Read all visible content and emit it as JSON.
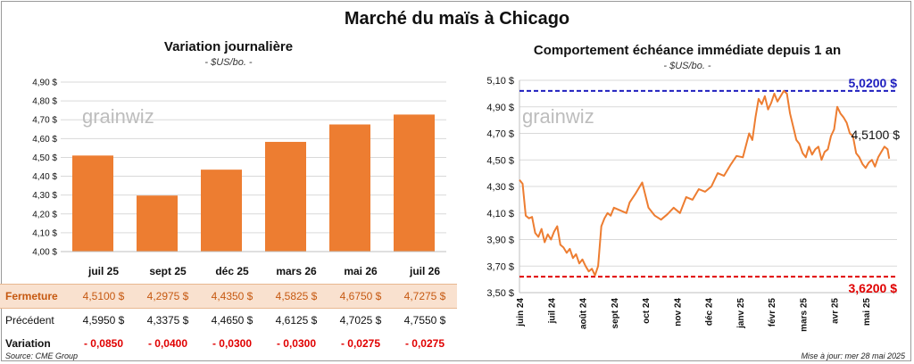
{
  "title": "Marché du maïs à Chicago",
  "source": "Source: CME Group",
  "updated": "Mise à jour: mer 28 mai 2025",
  "watermark": "grainwiz",
  "colors": {
    "bar": "#ed7d31",
    "line": "#ed7d31",
    "high_line": "#1f1fbf",
    "low_line": "#e00000",
    "loss": "#e00000"
  },
  "table": {
    "row_labels": {
      "close": "Fermeture",
      "previous": "Précédent",
      "change": "Variation"
    },
    "contracts": [
      {
        "month": "juil 25",
        "close": "4,5100  $",
        "previous": "4,5950  $",
        "change": "- 0,0850"
      },
      {
        "month": "sept 25",
        "close": "4,2975  $",
        "previous": "4,3375  $",
        "change": "- 0,0400"
      },
      {
        "month": "déc 25",
        "close": "4,4350  $",
        "previous": "4,4650  $",
        "change": "- 0,0300"
      },
      {
        "month": "mars 26",
        "close": "4,5825  $",
        "previous": "4,6125  $",
        "change": "- 0,0300"
      },
      {
        "month": "mai 26",
        "close": "4,6750  $",
        "previous": "4,7025  $",
        "change": "- 0,0275"
      },
      {
        "month": "juil 26",
        "close": "4,7275  $",
        "previous": "4,7550  $",
        "change": "- 0,0275"
      }
    ]
  },
  "chart_data": [
    {
      "type": "bar",
      "title": "Variation  journalière",
      "unit_label": "- $US/bo. -",
      "categories": [
        "juil 25",
        "sept 25",
        "déc 25",
        "mars 26",
        "mai 26",
        "juil 26"
      ],
      "values": [
        4.51,
        4.2975,
        4.435,
        4.5825,
        4.675,
        4.7275
      ],
      "ylim": [
        4.0,
        4.9
      ],
      "yticks": [
        4.0,
        4.1,
        4.2,
        4.3,
        4.4,
        4.5,
        4.6,
        4.7,
        4.8,
        4.9
      ],
      "ytick_labels": [
        "4,00 $",
        "4,10 $",
        "4,20 $",
        "4,30 $",
        "4,40 $",
        "4,50 $",
        "4,60 $",
        "4,70 $",
        "4,80 $",
        "4,90 $"
      ],
      "grid": true
    },
    {
      "type": "line",
      "title": "Comportement  échéance immédiate  depuis 1 an",
      "unit_label": "- $US/bo. -",
      "ylim": [
        3.5,
        5.1
      ],
      "yticks": [
        3.5,
        3.7,
        3.9,
        4.1,
        4.3,
        4.5,
        4.7,
        4.9,
        5.1
      ],
      "ytick_labels": [
        "3,50 $",
        "3,70 $",
        "3,90 $",
        "4,10 $",
        "4,30 $",
        "4,50 $",
        "4,70 $",
        "4,90 $",
        "5,10 $"
      ],
      "x_tick_labels": [
        "juin 24",
        "juil 24",
        "août 24",
        "sept 24",
        "oct 24",
        "nov 24",
        "déc 24",
        "janv 25",
        "févr 25",
        "mars 25",
        "avr 25",
        "mai 25"
      ],
      "x_tick_positions_months": [
        0,
        1,
        2,
        3,
        4,
        5,
        6,
        7,
        8,
        9,
        10,
        11
      ],
      "x_range_months": [
        0,
        12
      ],
      "series_x_months": [
        0,
        0.1,
        0.2,
        0.3,
        0.4,
        0.5,
        0.6,
        0.7,
        0.8,
        0.9,
        1.0,
        1.1,
        1.2,
        1.3,
        1.4,
        1.5,
        1.6,
        1.7,
        1.8,
        1.9,
        2.0,
        2.1,
        2.2,
        2.3,
        2.4,
        2.5,
        2.6,
        2.7,
        2.8,
        2.9,
        3.0,
        3.2,
        3.4,
        3.5,
        3.7,
        3.9,
        4.1,
        4.3,
        4.5,
        4.7,
        4.9,
        5.1,
        5.3,
        5.5,
        5.7,
        5.9,
        6.1,
        6.3,
        6.5,
        6.7,
        6.9,
        7.1,
        7.3,
        7.4,
        7.5,
        7.6,
        7.7,
        7.8,
        7.9,
        8.0,
        8.1,
        8.2,
        8.3,
        8.4,
        8.5,
        8.6,
        8.7,
        8.8,
        8.9,
        9.0,
        9.1,
        9.2,
        9.3,
        9.4,
        9.5,
        9.6,
        9.7,
        9.8,
        9.9,
        10.0,
        10.1,
        10.2,
        10.3,
        10.4,
        10.5,
        10.6,
        10.7,
        10.8,
        10.9,
        11.0,
        11.1,
        11.2,
        11.3,
        11.4,
        11.5,
        11.6,
        11.7,
        11.75
      ],
      "series_values": [
        4.35,
        4.32,
        4.08,
        4.06,
        4.07,
        3.95,
        3.92,
        3.98,
        3.88,
        3.94,
        3.9,
        3.96,
        4.0,
        3.86,
        3.84,
        3.8,
        3.83,
        3.76,
        3.79,
        3.72,
        3.75,
        3.7,
        3.66,
        3.68,
        3.63,
        3.7,
        4.0,
        4.06,
        4.1,
        4.08,
        4.14,
        4.12,
        4.1,
        4.18,
        4.25,
        4.33,
        4.14,
        4.08,
        4.05,
        4.09,
        4.14,
        4.1,
        4.22,
        4.2,
        4.28,
        4.26,
        4.3,
        4.4,
        4.38,
        4.46,
        4.53,
        4.52,
        4.7,
        4.65,
        4.82,
        4.96,
        4.92,
        4.98,
        4.88,
        4.93,
        5.0,
        4.94,
        4.98,
        5.02,
        5.0,
        4.85,
        4.75,
        4.65,
        4.62,
        4.55,
        4.52,
        4.6,
        4.54,
        4.58,
        4.6,
        4.5,
        4.56,
        4.58,
        4.68,
        4.73,
        4.9,
        4.85,
        4.82,
        4.78,
        4.7,
        4.68,
        4.55,
        4.52,
        4.47,
        4.44,
        4.48,
        4.5,
        4.45,
        4.52,
        4.56,
        4.6,
        4.58,
        4.51
      ],
      "high_line": {
        "value": 5.02,
        "label": "5,0200 $"
      },
      "low_line": {
        "value": 3.62,
        "label": "3,6200 $"
      },
      "last_value_label": "4,5100 $",
      "grid": true
    }
  ]
}
